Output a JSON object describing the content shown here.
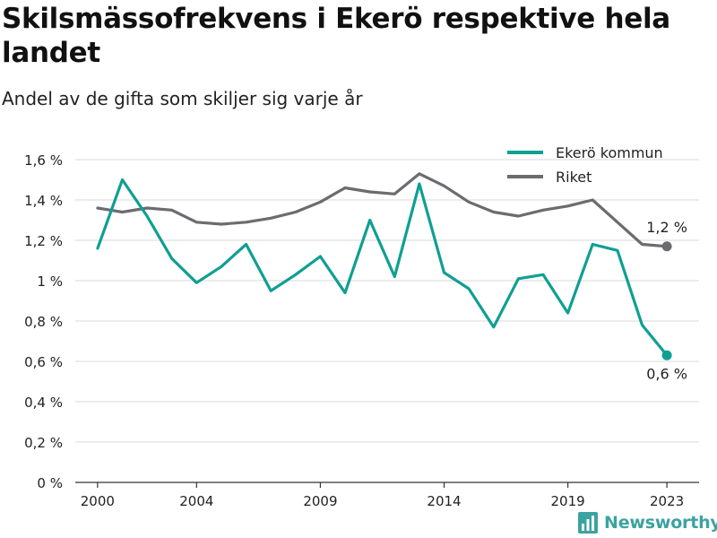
{
  "title": "Skilsmässofrekvens i Ekerö respektive hela landet",
  "subtitle": "Andel av de gifta som skiljer sig varje år",
  "brand": "Newsworthy",
  "colors": {
    "ekero": "#0f9f93",
    "riket": "#6b6b70",
    "grid": "#d9d9d9",
    "axis": "#333333",
    "brand": "#3ba3a0"
  },
  "chart_data": {
    "type": "line",
    "x": [
      2000,
      2001,
      2002,
      2003,
      2004,
      2005,
      2006,
      2007,
      2008,
      2009,
      2010,
      2011,
      2012,
      2013,
      2014,
      2015,
      2016,
      2017,
      2018,
      2019,
      2020,
      2021,
      2022,
      2023
    ],
    "xticks": [
      2000,
      2004,
      2009,
      2014,
      2019,
      2023
    ],
    "ylim": [
      0,
      1.6
    ],
    "yticks": [
      0,
      0.2,
      0.4,
      0.6,
      0.8,
      1.0,
      1.2,
      1.4,
      1.6
    ],
    "ytick_labels": [
      "0 %",
      "0,2 %",
      "0,4 %",
      "0,6 %",
      "0,8 %",
      "1 %",
      "1,2 %",
      "1,4 %",
      "1,6 %"
    ],
    "grid": true,
    "legend_position": "top-right",
    "series": [
      {
        "name": "Ekerö kommun",
        "color": "#0f9f93",
        "values": [
          1.16,
          1.5,
          1.32,
          1.11,
          0.99,
          1.07,
          1.18,
          0.95,
          1.03,
          1.12,
          0.94,
          1.3,
          1.02,
          1.48,
          1.04,
          0.96,
          0.77,
          1.01,
          1.03,
          0.84,
          1.18,
          1.15,
          0.78,
          0.63
        ],
        "end_label": "0,6 %"
      },
      {
        "name": "Riket",
        "color": "#6b6b70",
        "values": [
          1.36,
          1.34,
          1.36,
          1.35,
          1.29,
          1.28,
          1.29,
          1.31,
          1.34,
          1.39,
          1.46,
          1.44,
          1.43,
          1.53,
          1.47,
          1.39,
          1.34,
          1.32,
          1.35,
          1.37,
          1.4,
          1.29,
          1.18,
          1.17
        ],
        "end_label": "1,2 %"
      }
    ]
  }
}
